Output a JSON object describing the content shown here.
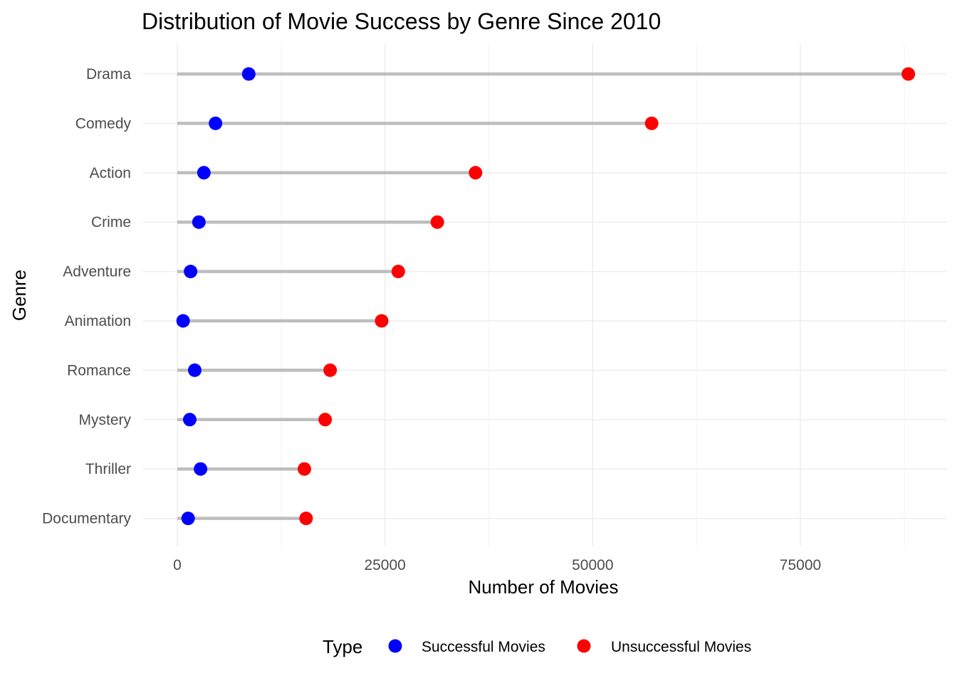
{
  "chart_data": {
    "type": "lollipop",
    "title": "Distribution of Movie Success by Genre Since 2010",
    "xlabel": "Number of Movies",
    "ylabel": "Genre",
    "xlim": [
      -2000,
      92000
    ],
    "xticks": [
      0,
      25000,
      50000,
      75000
    ],
    "xtick_labels": [
      "0",
      "25000",
      "50000",
      "75000"
    ],
    "grid": true,
    "legend": {
      "title": "Type",
      "position": "bottom",
      "items": [
        {
          "label": "Successful Movies",
          "color": "#0000ff"
        },
        {
          "label": "Unsuccessful Movies",
          "color": "#ff0000"
        }
      ]
    },
    "categories": [
      "Drama",
      "Comedy",
      "Action",
      "Crime",
      "Adventure",
      "Animation",
      "Romance",
      "Mystery",
      "Thriller",
      "Documentary"
    ],
    "series": [
      {
        "name": "Successful Movies",
        "color": "#0000ff",
        "values": [
          8600,
          4600,
          3200,
          2600,
          1600,
          700,
          2100,
          1500,
          2800,
          1300
        ]
      },
      {
        "name": "Unsuccessful Movies",
        "color": "#ff0000",
        "values": [
          88000,
          57100,
          35900,
          31300,
          26600,
          24600,
          18400,
          17800,
          15300,
          15500
        ]
      }
    ]
  }
}
